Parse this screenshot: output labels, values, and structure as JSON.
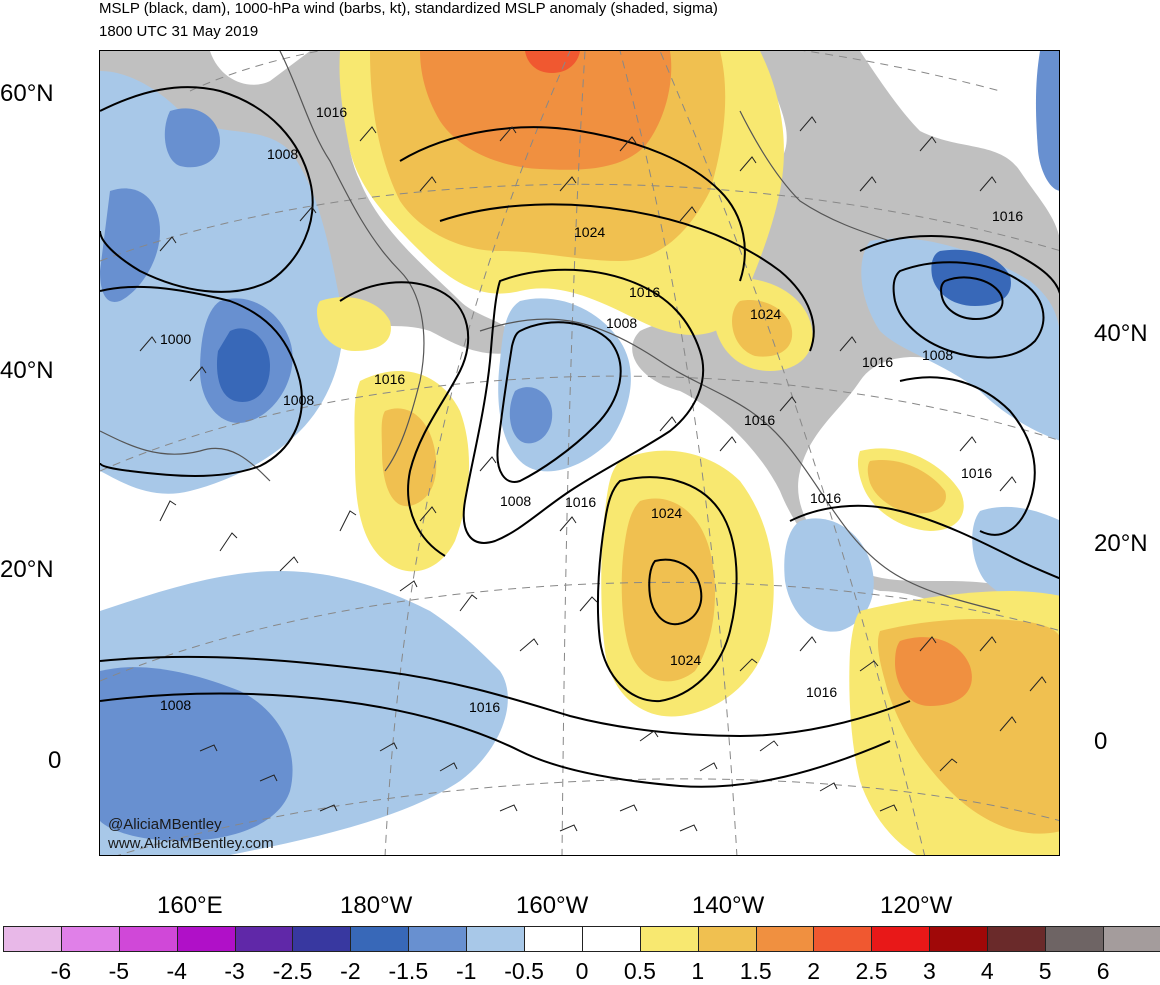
{
  "title_line1": "MSLP (black, dam), 1000-hPa wind (barbs, kt), standardized MSLP anomaly (shaded, sigma)",
  "title_line2": "1800 UTC 31 May 2019",
  "credit": {
    "twitter": "@AliciaMBentley",
    "website": "www.AliciaMBentley.com"
  },
  "latitude_labels_left": [
    "60°N",
    "40°N",
    "20°N",
    "0"
  ],
  "latitude_labels_right": [
    "40°N",
    "20°N",
    "0"
  ],
  "longitude_labels": [
    "160°E",
    "180°W",
    "160°W",
    "140°W",
    "120°W"
  ],
  "isobar_labels": [
    "1016",
    "1008",
    "1024",
    "1016",
    "1008",
    "1016",
    "1000",
    "1008",
    "1016",
    "1008",
    "1016",
    "1024",
    "1016",
    "1008",
    "1016",
    "1016",
    "1016",
    "1024",
    "1016",
    "1024",
    "1016",
    "1008",
    "1016"
  ],
  "colorbar": {
    "tick_labels": [
      "-6",
      "-5",
      "-4",
      "-3",
      "-2.5",
      "-2",
      "-1.5",
      "-1",
      "-0.5",
      "0",
      "0.5",
      "1",
      "1.5",
      "2",
      "2.5",
      "3",
      "4",
      "5",
      "6"
    ],
    "colors": [
      "#e8b8e8",
      "#e080e8",
      "#d048d8",
      "#b010c8",
      "#6028a8",
      "#3838a0",
      "#3868b8",
      "#6890d0",
      "#a8c8e8",
      "#ffffff",
      "#ffffff",
      "#f8e870",
      "#f0c050",
      "#f09040",
      "#f05830",
      "#e81818",
      "#a00808",
      "#6a2a2a",
      "#6e6464",
      "#a49c9c"
    ]
  },
  "anomaly_colors": {
    "neg_strong": "#3868b8",
    "neg": "#6890d0",
    "neg_weak": "#a8c8e8",
    "pos_weak": "#f8e870",
    "pos": "#f0c050",
    "pos_strong": "#f09040",
    "pos_very": "#f05830",
    "high_ptn": "#c0c0c0"
  }
}
